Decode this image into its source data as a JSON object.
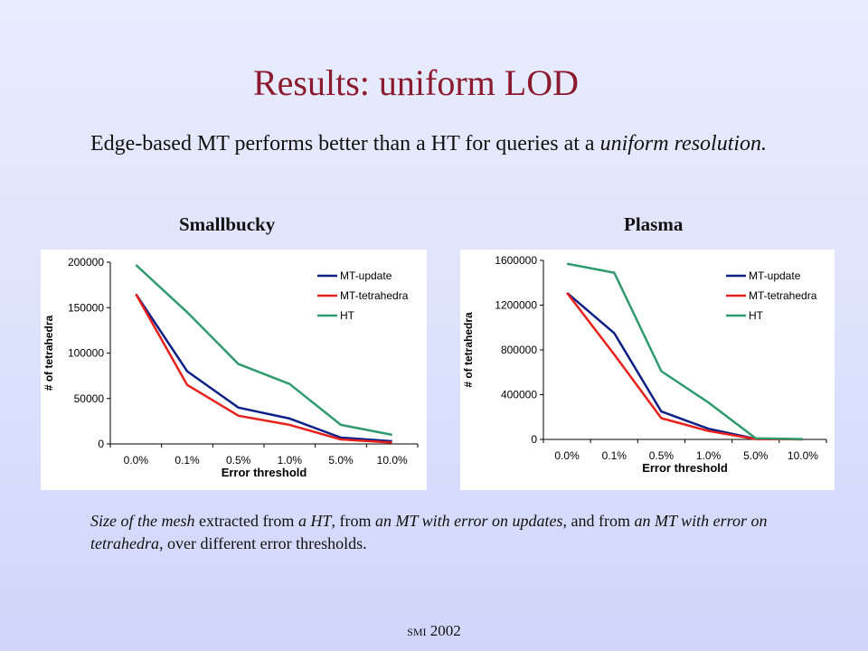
{
  "slide": {
    "title": "Results: uniform LOD",
    "intro_part1": "Edge-based MT performs better than a HT for queries at a ",
    "intro_italic": "uniform resolution.",
    "caption": [
      {
        "t": "Size of the mesh",
        "i": true
      },
      {
        "t": " extracted from ",
        "i": false
      },
      {
        "t": "a HT",
        "i": true
      },
      {
        "t": ", from ",
        "i": false
      },
      {
        "t": "an MT with error on updates",
        "i": true
      },
      {
        "t": ",  and from ",
        "i": false
      },
      {
        "t": "an MT with error on tetrahedra",
        "i": true
      },
      {
        "t": ", over different error thresholds.",
        "i": false
      }
    ],
    "footer_smi": "smi",
    "footer_year": "2002"
  },
  "colors": {
    "MT-update": "#0b1f86",
    "MT-tetrahedra": "#e8201c",
    "HT": "#2f9a6d"
  },
  "chart_data": [
    {
      "type": "line",
      "heading": "Smallbucky",
      "categories": [
        "0.0%",
        "0.1%",
        "0.5%",
        "1.0%",
        "5.0%",
        "10.0%"
      ],
      "xlabel": "Error threshold",
      "ylabel": "# of tetrahedra",
      "ylim": [
        0,
        200000
      ],
      "yticks": [
        0,
        50000,
        100000,
        150000,
        200000
      ],
      "legend_position": "top-right",
      "series": [
        {
          "name": "MT-update",
          "values": [
            165000,
            80000,
            40000,
            28000,
            7000,
            3000
          ]
        },
        {
          "name": "MT-tetrahedra",
          "values": [
            165000,
            65000,
            31000,
            21000,
            5000,
            1500
          ]
        },
        {
          "name": "HT",
          "values": [
            197000,
            145000,
            88000,
            66000,
            21000,
            10000
          ]
        }
      ]
    },
    {
      "type": "line",
      "heading": "Plasma",
      "categories": [
        "0.0%",
        "0.1%",
        "0.5%",
        "1.0%",
        "5.0%",
        "10.0%"
      ],
      "xlabel": "Error threshold",
      "ylabel": "# of tetrahedra",
      "ylim": [
        0,
        1600000
      ],
      "yticks": [
        0,
        400000,
        800000,
        1200000,
        1600000
      ],
      "legend_position": "top-right",
      "series": [
        {
          "name": "MT-update",
          "values": [
            1310000,
            950000,
            250000,
            95000,
            5000,
            1000
          ]
        },
        {
          "name": "MT-tetrahedra",
          "values": [
            1310000,
            760000,
            190000,
            75000,
            3000,
            500
          ]
        },
        {
          "name": "HT",
          "values": [
            1570000,
            1490000,
            610000,
            330000,
            10000,
            3000
          ]
        }
      ]
    }
  ]
}
